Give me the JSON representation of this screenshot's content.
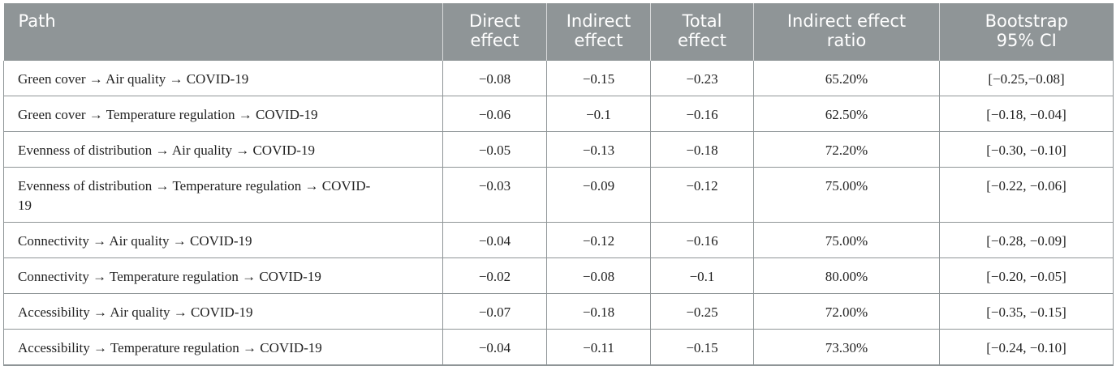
{
  "table": {
    "headers": [
      {
        "lines": [
          "Path"
        ]
      },
      {
        "lines": [
          "Direct",
          "effect"
        ]
      },
      {
        "lines": [
          "Indirect",
          "effect"
        ]
      },
      {
        "lines": [
          "Total",
          "effect"
        ]
      },
      {
        "lines": [
          "Indirect effect",
          "ratio"
        ]
      },
      {
        "lines": [
          "Bootstrap",
          "95% CI"
        ]
      }
    ],
    "rows": [
      {
        "path": "Green cover →  Air quality →  COVID-19",
        "direct": "−0.08",
        "indirect": "−0.15",
        "total": "−0.23",
        "ratio": "65.20%",
        "ci": "[−0.25,−0.08]"
      },
      {
        "path": "Green cover →  Temperature regulation →  COVID-19",
        "direct": "−0.06",
        "indirect": "−0.1",
        "total": "−0.16",
        "ratio": "62.50%",
        "ci": "[−0.18, −0.04]"
      },
      {
        "path": "Evenness of distribution →  Air quality →  COVID-19",
        "direct": "−0.05",
        "indirect": "−0.13",
        "total": "−0.18",
        "ratio": "72.20%",
        "ci": "[−0.30, −0.10]"
      },
      {
        "path": "Evenness of distribution →  Temperature regulation → COVID-19",
        "direct": "−0.03",
        "indirect": "−0.09",
        "total": "−0.12",
        "ratio": "75.00%",
        "ci": "[−0.22, −0.06]"
      },
      {
        "path": "Connectivity →  Air quality →  COVID-19",
        "direct": "−0.04",
        "indirect": "−0.12",
        "total": "−0.16",
        "ratio": "75.00%",
        "ci": "[−0.28, −0.09]"
      },
      {
        "path": "Connectivity →  Temperature regulation →  COVID-19",
        "direct": "−0.02",
        "indirect": "−0.08",
        "total": "−0.1",
        "ratio": "80.00%",
        "ci": "[−0.20, −0.05]"
      },
      {
        "path": "Accessibility →  Air quality →  COVID-19",
        "direct": "−0.07",
        "indirect": "−0.18",
        "total": "−0.25",
        "ratio": "72.00%",
        "ci": "[−0.35, −0.15]"
      },
      {
        "path": "Accessibility →  Temperature regulation →  COVID-19",
        "direct": "−0.04",
        "indirect": "−0.11",
        "total": "−0.15",
        "ratio": "73.30%",
        "ci": "[−0.24, −0.10]"
      }
    ]
  }
}
